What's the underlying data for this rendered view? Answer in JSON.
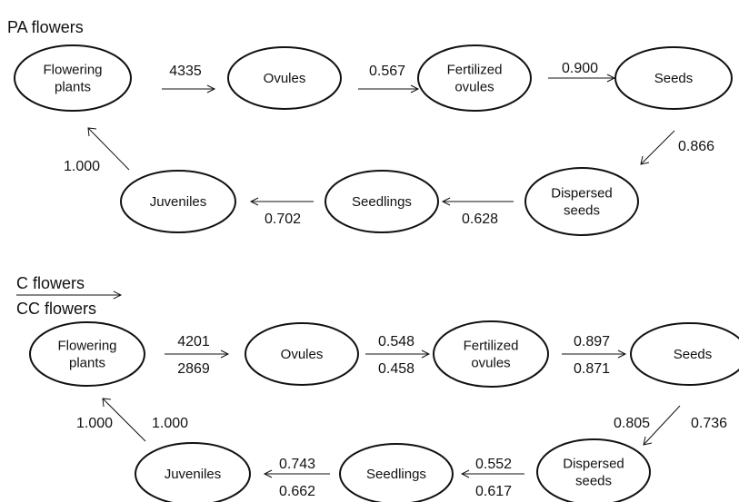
{
  "panels": [
    {
      "title": "PA flowers",
      "nodes": [
        "Flowering plants",
        "Ovules",
        "Fertilized ovules",
        "Seeds",
        "Dispersed seeds",
        "Seedlings",
        "Juveniles"
      ],
      "edges": [
        {
          "id": "e1",
          "value": "4335"
        },
        {
          "id": "e2",
          "value": "0.567"
        },
        {
          "id": "e3",
          "value": "0.900"
        },
        {
          "id": "e4",
          "value": "0.866"
        },
        {
          "id": "e5",
          "value": "0.628"
        },
        {
          "id": "e6",
          "value": "0.702"
        },
        {
          "id": "e7",
          "value": "1.000"
        }
      ]
    },
    {
      "title_top": "C flowers",
      "title_bottom": "CC flowers",
      "nodes": [
        "Flowering plants",
        "Ovules",
        "Fertilized ovules",
        "Seeds",
        "Dispersed seeds",
        "Seedlings",
        "Juveniles"
      ],
      "edges": [
        {
          "id": "e1",
          "top": "4201",
          "bottom": "2869"
        },
        {
          "id": "e2",
          "top": "0.548",
          "bottom": "0.458"
        },
        {
          "id": "e3",
          "top": "0.897",
          "bottom": "0.871"
        },
        {
          "id": "e4",
          "top": "0.805",
          "bottom": "0.736"
        },
        {
          "id": "e5",
          "top": "0.552",
          "bottom": "0.617"
        },
        {
          "id": "e6",
          "top": "0.743",
          "bottom": "0.662"
        },
        {
          "id": "e7",
          "top": "1.000",
          "bottom": "1.000"
        }
      ]
    }
  ]
}
